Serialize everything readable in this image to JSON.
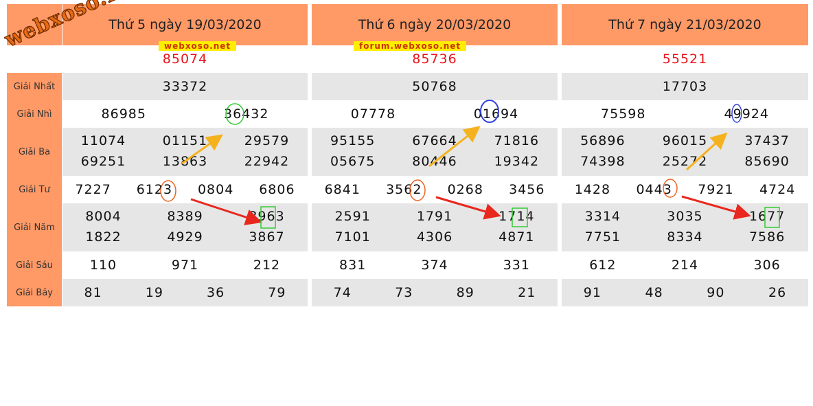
{
  "labels": [
    "Giải Nhất",
    "Giải Nhì",
    "Giải Ba",
    "Giải Tư",
    "Giải Năm",
    "Giải Sáu",
    "Giải Bảy"
  ],
  "watermark_logo": "webxoso.net",
  "watermarks": [
    "webxoso.net",
    "forum.webxoso.net"
  ],
  "columns": [
    {
      "header": "Thứ 5 ngày 19/03/2020",
      "special": "85074",
      "nhat": "33372",
      "nhi": [
        "86985",
        "36432"
      ],
      "ba": [
        [
          "11074",
          "01151",
          "29579"
        ],
        [
          "69251",
          "13863",
          "22942"
        ]
      ],
      "tu": [
        "7227",
        "6123",
        "0804",
        "6806"
      ],
      "nam": [
        [
          "8004",
          "8389",
          "3963"
        ],
        [
          "1822",
          "4929",
          "3867"
        ]
      ],
      "sau": [
        "110",
        "971",
        "212"
      ],
      "bay": [
        "81",
        "19",
        "36",
        "79"
      ]
    },
    {
      "header": "Thứ 6 ngày 20/03/2020",
      "special": "85736",
      "nhat": "50768",
      "nhi": [
        "07778",
        "01694"
      ],
      "ba": [
        [
          "95155",
          "67664",
          "71816"
        ],
        [
          "05675",
          "80446",
          "19342"
        ]
      ],
      "tu": [
        "6841",
        "3562",
        "0268",
        "3456"
      ],
      "nam": [
        [
          "2591",
          "1791",
          "1714"
        ],
        [
          "7101",
          "4306",
          "4871"
        ]
      ],
      "sau": [
        "831",
        "374",
        "331"
      ],
      "bay": [
        "74",
        "73",
        "89",
        "21"
      ]
    },
    {
      "header": "Thứ 7 ngày 21/03/2020",
      "special": "55521",
      "nhat": "17703",
      "nhi": [
        "75598",
        "49924"
      ],
      "ba": [
        [
          "56896",
          "96015",
          "37437"
        ],
        [
          "74398",
          "25272",
          "85690"
        ]
      ],
      "tu": [
        "1428",
        "0443",
        "7921",
        "4724"
      ],
      "nam": [
        [
          "3314",
          "3035",
          "1677"
        ],
        [
          "7751",
          "8334",
          "7586"
        ]
      ],
      "sau": [
        "612",
        "214",
        "306"
      ],
      "bay": [
        "91",
        "48",
        "90",
        "26"
      ]
    }
  ],
  "colors": {
    "header_bg": "#ff9966",
    "row_shade": "#e6e6e6",
    "special_text": "#e8141c"
  }
}
